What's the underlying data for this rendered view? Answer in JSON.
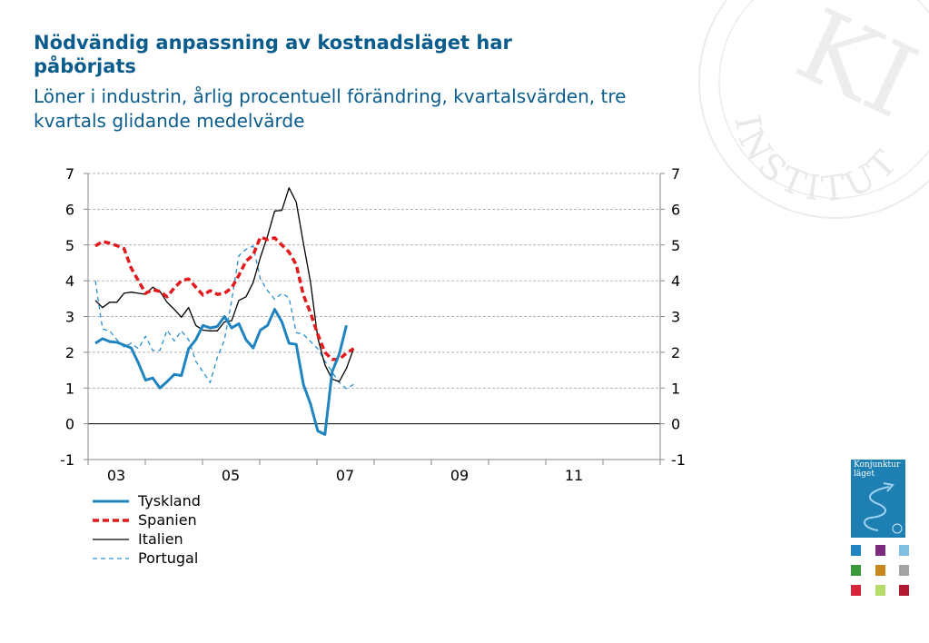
{
  "title": "Nödvändig anpassning av kostnadsläget har påbörjats",
  "subtitle": "Löner i industrin, årlig procentuell förändring, kvartalsvärden, tre kvartals glidande medelvärde",
  "seal_text": "INSTITUTET",
  "seal_monogram": "KI",
  "cover": {
    "line1": "Konjunktur",
    "line2": "läget"
  },
  "colors": {
    "title": "#0a5c8c",
    "tyskland": "#1f84bf",
    "spanien": "#e31a1c",
    "italien": "#000000",
    "portugal": "#2a8fcf"
  },
  "chart_data": {
    "type": "line",
    "x_labels": [
      "03",
      "05",
      "07",
      "09",
      "11"
    ],
    "ylim": [
      -1,
      7
    ],
    "yticks": [
      -1,
      0,
      1,
      2,
      3,
      4,
      5,
      6,
      7
    ],
    "grid": true,
    "legend_position": "bottom-left",
    "series": [
      {
        "name": "Tyskland",
        "style": "solid-thick",
        "values": [
          2.25,
          2.38,
          2.3,
          2.28,
          2.2,
          2.12,
          1.7,
          1.22,
          1.28,
          1.0,
          1.18,
          1.38,
          1.35,
          2.1,
          2.35,
          2.75,
          2.68,
          2.72,
          3.0,
          2.68,
          2.8,
          2.35,
          2.12,
          2.62,
          2.75,
          3.2,
          2.85,
          2.25,
          2.22,
          1.1,
          0.55,
          -0.2,
          -0.3,
          1.45,
          1.95,
          2.75
        ]
      },
      {
        "name": "Spanien",
        "style": "dashed-thick",
        "values": [
          4.97,
          5.1,
          5.05,
          4.98,
          4.9,
          4.35,
          4.0,
          3.65,
          3.75,
          3.7,
          3.55,
          3.8,
          4.0,
          4.05,
          3.82,
          3.6,
          3.72,
          3.62,
          3.65,
          3.8,
          4.15,
          4.55,
          4.72,
          5.22,
          5.15,
          5.2,
          5.0,
          4.8,
          4.45,
          3.6,
          3.1,
          2.5,
          2.0,
          1.8,
          1.8,
          1.98,
          2.1
        ]
      },
      {
        "name": "Italien",
        "style": "solid-thin",
        "values": [
          3.45,
          3.25,
          3.4,
          3.4,
          3.65,
          3.68,
          3.65,
          3.62,
          3.82,
          3.7,
          3.4,
          3.2,
          2.98,
          3.25,
          2.75,
          2.62,
          2.6,
          2.6,
          2.85,
          2.88,
          3.45,
          3.55,
          3.95,
          4.65,
          5.25,
          5.95,
          5.97,
          6.6,
          6.2,
          5.05,
          3.95,
          2.4,
          1.65,
          1.25,
          1.18,
          1.55,
          2.1
        ]
      },
      {
        "name": "Portugal",
        "style": "dashed-thin",
        "values": [
          4.0,
          2.65,
          2.6,
          2.35,
          2.15,
          2.25,
          2.1,
          2.45,
          2.05,
          2.05,
          2.62,
          2.32,
          2.6,
          2.35,
          1.75,
          1.45,
          1.15,
          1.85,
          2.35,
          3.45,
          4.7,
          4.88,
          4.97,
          4.05,
          3.72,
          3.48,
          3.65,
          3.52,
          2.55,
          2.5,
          2.3,
          2.1,
          1.75,
          1.45,
          1.15,
          0.98,
          1.1
        ]
      }
    ]
  }
}
